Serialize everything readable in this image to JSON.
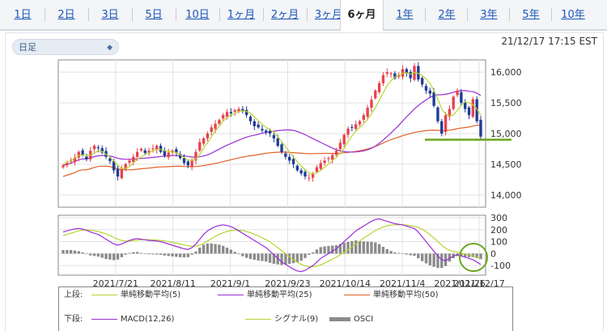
{
  "tabs": [
    {
      "label": "1日"
    },
    {
      "label": "2日"
    },
    {
      "label": "3日"
    },
    {
      "label": "5日"
    },
    {
      "label": "10日"
    },
    {
      "label": "1ヶ月"
    },
    {
      "label": "2ヶ月"
    },
    {
      "label": "3ヶ月"
    },
    {
      "label": "6ヶ月",
      "active": true
    },
    {
      "label": "1年"
    },
    {
      "label": "2年"
    },
    {
      "label": "3年"
    },
    {
      "label": "5年"
    },
    {
      "label": "10年"
    }
  ],
  "selector": {
    "value": "日足"
  },
  "timestamp": "21/12/17 17:15 EST",
  "legend": {
    "upper_label": "上段:",
    "lower_label": "下段:",
    "upper": [
      {
        "name": "単純移動平均(5)",
        "color": "#b8d432"
      },
      {
        "name": "単純移動平均(25)",
        "color": "#9a2fd6"
      },
      {
        "name": "単純移動平均(50)",
        "color": "#e0622b"
      }
    ],
    "lower": [
      {
        "name": "MACD(12,26)",
        "color": "#9a2fd6"
      },
      {
        "name": "シグナル(9)",
        "color": "#b8d432"
      },
      {
        "name": "OSCI",
        "color": "#8a8a8a"
      }
    ]
  },
  "colors": {
    "up": "#e8424a",
    "down": "#1f3c97",
    "support": "#6aa51f",
    "circle": "#6aa51f"
  },
  "chart_data": {
    "type": "candlestick",
    "x_labels": [
      "2021/7/21",
      "2021/8/11",
      "2021/9/1",
      "2021/9/23",
      "2021/10/14",
      "2021/11/4",
      "2021/11/26",
      "2021/12/17"
    ],
    "price_ticks": [
      "16,000",
      "15,500",
      "15,000",
      "14,500",
      "14,000"
    ],
    "ylim_price": [
      13800,
      16200
    ],
    "macd_ticks": [
      "300",
      "200",
      "100",
      "0",
      "-100"
    ],
    "ylim_macd": [
      -180,
      320
    ],
    "support_level": 14900,
    "close": [
      14480,
      14520,
      14560,
      14610,
      14700,
      14650,
      14580,
      14720,
      14800,
      14760,
      14690,
      14620,
      14550,
      14400,
      14300,
      14420,
      14500,
      14560,
      14620,
      14700,
      14750,
      14680,
      14720,
      14760,
      14800,
      14700,
      14640,
      14690,
      14720,
      14690,
      14600,
      14520,
      14480,
      14560,
      14700,
      14860,
      14920,
      15000,
      15100,
      15160,
      15220,
      15300,
      15350,
      15330,
      15380,
      15400,
      15360,
      15300,
      15200,
      15120,
      15100,
      15050,
      15020,
      15000,
      14920,
      14800,
      14700,
      14620,
      14560,
      14500,
      14400,
      14350,
      14300,
      14280,
      14350,
      14450,
      14520,
      14560,
      14600,
      14650,
      14720,
      14850,
      14980,
      15080,
      15100,
      15150,
      15200,
      15300,
      15420,
      15550,
      15700,
      15820,
      15950,
      16000,
      15980,
      15900,
      15950,
      16050,
      15980,
      15900,
      16100,
      15880,
      15800,
      15700,
      15650,
      15450,
      15200,
      15000,
      15300,
      15400,
      15600,
      15700,
      15500,
      15400,
      15300,
      15560,
      15200,
      14950
    ],
    "ma5": [
      14500,
      14530,
      14560,
      14600,
      14640,
      14650,
      14640,
      14650,
      14680,
      14720,
      14710,
      14660,
      14620,
      14550,
      14480,
      14430,
      14430,
      14460,
      14520,
      14580,
      14620,
      14660,
      14690,
      14720,
      14740,
      14740,
      14720,
      14710,
      14700,
      14690,
      14650,
      14610,
      14570,
      14560,
      14580,
      14660,
      14760,
      14850,
      14950,
      15040,
      15120,
      15200,
      15260,
      15300,
      15330,
      15360,
      15370,
      15360,
      15330,
      15270,
      15210,
      15150,
      15100,
      15060,
      15020,
      14950,
      14870,
      14780,
      14700,
      14620,
      14540,
      14470,
      14410,
      14360,
      14340,
      14360,
      14400,
      14450,
      14500,
      14560,
      14610,
      14680,
      14760,
      14870,
      14960,
      15040,
      15100,
      15160,
      15230,
      15320,
      15420,
      15540,
      15660,
      15780,
      15860,
      15920,
      15950,
      15980,
      15990,
      15970,
      15990,
      15980,
      15950,
      15890,
      15820,
      15700,
      15560,
      15400,
      15320,
      15290,
      15300,
      15380,
      15460,
      15520,
      15500,
      15470,
      15400,
      15300
    ],
    "macd": [
      180,
      190,
      200,
      205,
      210,
      205,
      195,
      180,
      170,
      160,
      140,
      120,
      100,
      80,
      70,
      80,
      95,
      110,
      120,
      125,
      120,
      115,
      110,
      108,
      105,
      100,
      90,
      80,
      70,
      60,
      50,
      40,
      35,
      50,
      80,
      120,
      160,
      190,
      210,
      225,
      235,
      240,
      235,
      225,
      210,
      190,
      170,
      150,
      130,
      110,
      90,
      70,
      50,
      20,
      -10,
      -40,
      -70,
      -90,
      -110,
      -130,
      -145,
      -150,
      -140,
      -120,
      -100,
      -70,
      -40,
      -20,
      0,
      20,
      40,
      70,
      100,
      130,
      160,
      190,
      210,
      230,
      250,
      270,
      285,
      290,
      280,
      270,
      260,
      250,
      245,
      240,
      230,
      220,
      210,
      180,
      140,
      100,
      60,
      20,
      -20,
      -50,
      -60,
      -40,
      -20,
      -10,
      -20,
      -30,
      -40,
      -50,
      -70,
      -90
    ],
    "signal": [
      150,
      160,
      170,
      180,
      190,
      195,
      197,
      195,
      190,
      185,
      175,
      165,
      150,
      135,
      120,
      110,
      105,
      105,
      108,
      112,
      115,
      116,
      116,
      115,
      113,
      110,
      106,
      100,
      94,
      87,
      80,
      72,
      65,
      60,
      62,
      70,
      85,
      105,
      125,
      145,
      160,
      175,
      185,
      192,
      195,
      195,
      192,
      185,
      175,
      162,
      148,
      132,
      116,
      97,
      75,
      50,
      25,
      0,
      -25,
      -50,
      -72,
      -90,
      -103,
      -110,
      -110,
      -104,
      -94,
      -80,
      -64,
      -47,
      -30,
      -10,
      10,
      32,
      55,
      80,
      105,
      128,
      150,
      172,
      192,
      210,
      223,
      232,
      238,
      240,
      240,
      240,
      238,
      234,
      229,
      219,
      203,
      182,
      158,
      130,
      100,
      70,
      44,
      27,
      18,
      11,
      4,
      -3,
      -10,
      -20,
      -31,
      -43
    ]
  }
}
